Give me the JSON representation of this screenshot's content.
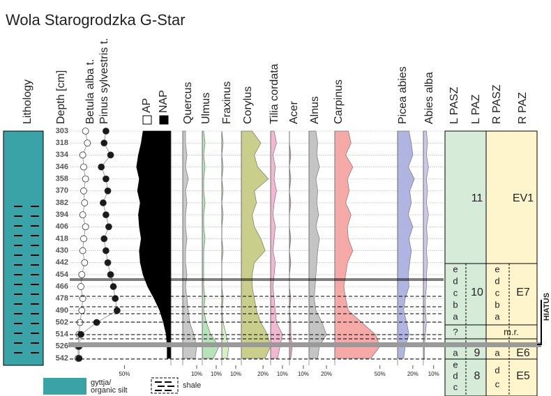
{
  "chart_data": {
    "type": "pollen",
    "title": "Wola Starogrodzka G-Star",
    "lithology_label": "Lithology",
    "depth_label": "Depth [cm]",
    "categories": [
      303,
      318,
      334,
      346,
      358,
      370,
      382,
      394,
      406,
      418,
      430,
      442,
      454,
      466,
      478,
      490,
      502,
      514,
      526,
      542
    ],
    "ap_label": "AP",
    "series": [
      {
        "name": "Betula alba t.",
        "color": "#ffffff",
        "marker": "circle",
        "xlim": [
          0,
          100
        ],
        "xticks": [
          {
            "value": 50,
            "label": "50%"
          }
        ],
        "values": [
          8,
          10,
          5,
          6,
          8,
          6,
          7,
          5,
          8,
          6,
          5,
          7,
          4,
          3,
          5,
          4,
          2,
          1,
          0,
          0
        ]
      },
      {
        "name": "Pinus sylvestris t.",
        "color": "#1a1a1a",
        "marker": "dot",
        "xlim": [
          0,
          100
        ],
        "xticks": [],
        "values": [
          30,
          28,
          35,
          25,
          30,
          32,
          27,
          30,
          33,
          28,
          30,
          32,
          35,
          38,
          40,
          42,
          20,
          3,
          1,
          1
        ]
      },
      {
        "name": "NAP",
        "color": "#000000",
        "xlim": [
          100,
          0
        ],
        "xticks": [],
        "values": [
          30,
          32,
          35,
          37,
          34,
          36,
          33,
          35,
          34,
          32,
          34,
          33,
          30,
          25,
          18,
          12,
          8,
          5,
          4,
          4
        ]
      },
      {
        "name": "Quercus",
        "color": "#c8c8c8",
        "xlim": [
          0,
          14
        ],
        "xticks": [
          {
            "value": 10,
            "label": "10%"
          }
        ],
        "values": [
          2,
          2,
          3,
          2,
          4,
          2,
          3,
          2,
          2,
          3,
          2,
          2,
          3,
          2,
          3,
          4,
          5,
          8,
          10,
          9
        ]
      },
      {
        "name": "Ulmus",
        "color": "#b8e3b8",
        "xlim": [
          0,
          14
        ],
        "xticks": [
          {
            "value": 10,
            "label": "10%"
          }
        ],
        "values": [
          1,
          2,
          1,
          2,
          1,
          1,
          2,
          1,
          1,
          2,
          1,
          1,
          1,
          1,
          2,
          1,
          3,
          6,
          12,
          8
        ]
      },
      {
        "name": "Fraxinus",
        "color": "#d6efc6",
        "xlim": [
          0,
          14
        ],
        "xticks": [
          {
            "value": 10,
            "label": "10%"
          }
        ],
        "values": [
          0,
          1,
          0,
          1,
          0,
          1,
          0,
          1,
          0,
          0,
          1,
          0,
          0,
          0,
          1,
          0,
          1,
          3,
          5,
          4
        ]
      },
      {
        "name": "Corylus",
        "color": "#c9cf8a",
        "xlim": [
          0,
          27
        ],
        "xticks": [
          {
            "value": 20,
            "label": "20%"
          }
        ],
        "values": [
          10,
          18,
          12,
          15,
          25,
          12,
          14,
          10,
          12,
          18,
          22,
          12,
          10,
          10,
          12,
          14,
          18,
          24,
          27,
          22
        ]
      },
      {
        "name": "Tilia cordata",
        "color": "#f2b8d0",
        "xlim": [
          0,
          16
        ],
        "xticks": [
          {
            "value": 10,
            "label": "10%"
          }
        ],
        "values": [
          3,
          5,
          2,
          4,
          3,
          5,
          3,
          2,
          4,
          3,
          2,
          4,
          3,
          2,
          3,
          4,
          5,
          10,
          8,
          6
        ]
      },
      {
        "name": "Acer",
        "color": "#e8a0b8",
        "xlim": [
          0,
          14
        ],
        "xticks": [
          {
            "value": 10,
            "label": "10%"
          }
        ],
        "values": [
          0,
          0,
          1,
          0,
          1,
          0,
          1,
          0,
          0,
          1,
          0,
          1,
          0,
          0,
          1,
          0,
          1,
          1,
          2,
          1
        ]
      },
      {
        "name": "Alnus",
        "color": "#c4c4c4",
        "xlim": [
          0,
          28
        ],
        "xticks": [
          {
            "value": 20,
            "label": "20%"
          }
        ],
        "values": [
          8,
          10,
          9,
          12,
          8,
          10,
          9,
          11,
          8,
          12,
          10,
          9,
          8,
          7,
          6,
          8,
          15,
          20,
          12,
          10
        ]
      },
      {
        "name": "Carpinus",
        "color": "#f6aaa8",
        "xlim": [
          0,
          68
        ],
        "xticks": [
          {
            "value": 50,
            "label": "50%"
          }
        ],
        "values": [
          15,
          18,
          12,
          20,
          14,
          16,
          12,
          18,
          14,
          15,
          20,
          14,
          12,
          10,
          12,
          15,
          30,
          45,
          50,
          40
        ]
      },
      {
        "name": "Picea abies",
        "color": "#b0b4e0",
        "xlim": [
          0,
          32
        ],
        "xticks": [
          {
            "value": 20,
            "label": "20%"
          }
        ],
        "values": [
          15,
          18,
          20,
          14,
          22,
          16,
          18,
          14,
          20,
          15,
          18,
          16,
          14,
          15,
          10,
          8,
          12,
          15,
          10,
          8
        ]
      },
      {
        "name": "Abies alba",
        "color": "#cfc6ea",
        "xlim": [
          0,
          17
        ],
        "xticks": [
          {
            "value": 10,
            "label": "10%"
          }
        ],
        "values": [
          3,
          4,
          3,
          5,
          3,
          4,
          3,
          5,
          3,
          4,
          3,
          4,
          3,
          3,
          2,
          2,
          3,
          2,
          1,
          1
        ]
      }
    ],
    "zones": {
      "headers": [
        "L PASZ",
        "L PAZ",
        "R PASZ",
        "R PAZ"
      ],
      "lpaz": [
        "11",
        "10",
        "9",
        "8"
      ],
      "rpaz": [
        "EV1",
        "E7",
        "E6",
        "E5"
      ],
      "lpasz": [
        "e",
        "d",
        "c",
        "b",
        "a",
        "?",
        "a",
        "e",
        "d",
        "c"
      ],
      "rpasz": [
        "e",
        "d",
        "c",
        "b",
        "a",
        "m.r.",
        "a",
        "d",
        "c"
      ],
      "hiatus": "HIATUS"
    },
    "legend": [
      {
        "label": [
          "gyttja/",
          "organic silt"
        ],
        "color": "#3aa3a8"
      },
      {
        "label": [
          "shale"
        ]
      }
    ]
  }
}
